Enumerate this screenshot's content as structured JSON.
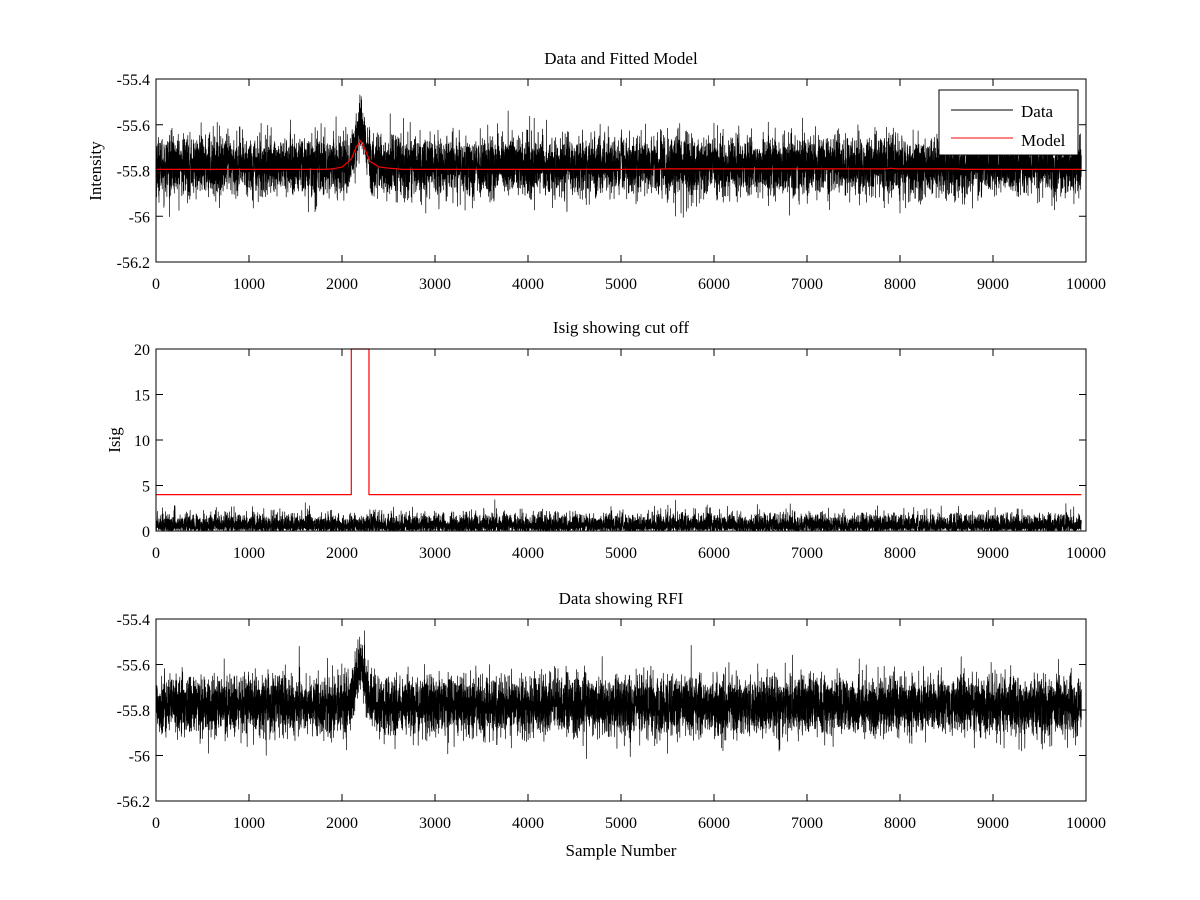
{
  "figure": {
    "background": "#ffffff"
  },
  "chart_data": [
    {
      "type": "line",
      "title": "Data and Fitted Model",
      "xlabel": "",
      "ylabel": "Intensity",
      "xlim": [
        0,
        10000
      ],
      "ylim": [
        -56.2,
        -55.4
      ],
      "xticks": [
        0,
        1000,
        2000,
        3000,
        4000,
        5000,
        6000,
        7000,
        8000,
        9000,
        10000
      ],
      "yticks": [
        -56.2,
        -56,
        -55.8,
        -55.6,
        -55.4
      ],
      "ytick_labels": [
        "-56.2",
        "-56",
        "-55.8",
        "-55.6",
        "-55.4"
      ],
      "legend": {
        "location": "top-right",
        "entries": [
          "Data",
          "Model"
        ]
      },
      "series": [
        {
          "name": "Data",
          "color": "#000000",
          "kind": "noise",
          "n_points": 9950,
          "x_range": [
            0,
            9950
          ],
          "mean": -55.78,
          "typical_range": [
            -55.95,
            -55.62
          ],
          "extremes": [
            -56.09,
            -55.47
          ],
          "bump": {
            "center": 2200,
            "width": 80,
            "peak": 0.17
          }
        },
        {
          "name": "Model",
          "color": "#ff0000",
          "kind": "line",
          "x": [
            0,
            1800,
            1900,
            2000,
            2100,
            2150,
            2200,
            2250,
            2300,
            2400,
            2500,
            2600,
            2650,
            5400,
            5450,
            7850,
            7900,
            7950,
            8600,
            8700,
            9950
          ],
          "y": [
            -55.795,
            -55.795,
            -55.793,
            -55.785,
            -55.75,
            -55.7,
            -55.67,
            -55.71,
            -55.76,
            -55.785,
            -55.79,
            -55.793,
            -55.795,
            -55.795,
            -55.793,
            -55.793,
            -55.79,
            -55.793,
            -55.793,
            -55.795,
            -55.795
          ]
        }
      ]
    },
    {
      "type": "line",
      "title": "Isig showing cut off",
      "xlabel": "",
      "ylabel": "Isig",
      "xlim": [
        0,
        10000
      ],
      "ylim": [
        0,
        20
      ],
      "xticks": [
        0,
        1000,
        2000,
        3000,
        4000,
        5000,
        6000,
        7000,
        8000,
        9000,
        10000
      ],
      "yticks": [
        0,
        5,
        10,
        15,
        20
      ],
      "ytick_labels": [
        "0",
        "5",
        "10",
        "15",
        "20"
      ],
      "series": [
        {
          "name": "Isig",
          "color": "#000000",
          "kind": "abs-noise",
          "n_points": 9950,
          "x_range": [
            0,
            9950
          ],
          "typical_max": 2.2,
          "extremes": [
            0,
            3.9
          ]
        },
        {
          "name": "Cut off",
          "color": "#ff0000",
          "kind": "line",
          "x": [
            0,
            2100,
            2100,
            2290,
            2290,
            9950
          ],
          "y": [
            4,
            4,
            20,
            20,
            4,
            4
          ]
        }
      ]
    },
    {
      "type": "line",
      "title": "Data showing RFI",
      "xlabel": "Sample Number",
      "ylabel": "",
      "xlim": [
        0,
        10000
      ],
      "ylim": [
        -56.2,
        -55.4
      ],
      "xticks": [
        0,
        1000,
        2000,
        3000,
        4000,
        5000,
        6000,
        7000,
        8000,
        9000,
        10000
      ],
      "yticks": [
        -56.2,
        -56,
        -55.8,
        -55.6,
        -55.4
      ],
      "ytick_labels": [
        "-56.2",
        "-56",
        "-55.8",
        "-55.6",
        "-55.4"
      ],
      "series": [
        {
          "name": "Data",
          "color": "#000000",
          "kind": "noise",
          "n_points": 9950,
          "x_range": [
            0,
            9950
          ],
          "mean": -55.78,
          "typical_range": [
            -55.95,
            -55.62
          ],
          "extremes": [
            -56.09,
            -55.44
          ],
          "bump": {
            "center": 2200,
            "width": 80,
            "peak": 0.17
          }
        }
      ]
    }
  ]
}
